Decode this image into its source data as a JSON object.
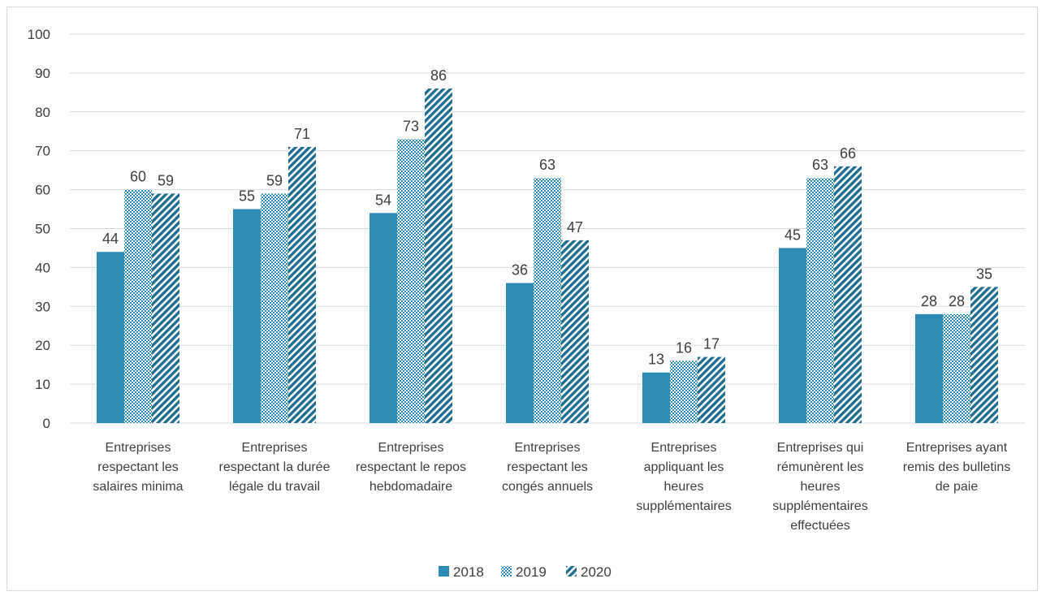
{
  "chart_data": {
    "type": "bar",
    "categories": [
      [
        "Entreprises",
        "respectant les",
        "salaires minima"
      ],
      [
        "Entreprises",
        "respectant la durée",
        "légale du travail"
      ],
      [
        "Entreprises",
        "respectant le repos",
        "hebdomadaire"
      ],
      [
        "Entreprises",
        "respectant  les",
        "congés annuels"
      ],
      [
        "Entreprises",
        "appliquant les",
        "heures",
        "supplémentaires"
      ],
      [
        "Entreprises qui",
        "rémunèrent les",
        "heures",
        "supplémentaires",
        "effectuées"
      ],
      [
        "Entreprises ayant",
        "remis des bulletins",
        "de paie"
      ]
    ],
    "series": [
      {
        "name": "2018",
        "values": [
          44,
          55,
          54,
          36,
          13,
          45,
          28
        ],
        "pattern": "solid"
      },
      {
        "name": "2019",
        "values": [
          60,
          59,
          73,
          63,
          16,
          63,
          28
        ],
        "pattern": "checker"
      },
      {
        "name": "2020",
        "values": [
          59,
          71,
          86,
          47,
          17,
          66,
          35
        ],
        "pattern": "diagonal"
      }
    ],
    "value_labels": [
      [
        "44",
        "55",
        "54",
        "36",
        "13",
        "45",
        "28"
      ],
      [
        "60",
        "59",
        "73",
        "63",
        "16",
        "63",
        "28"
      ],
      [
        "59",
        "71",
        "86",
        "47",
        "17",
        "66",
        "35"
      ]
    ],
    "ylim": [
      0,
      100
    ],
    "yticks": [
      "0",
      "10",
      "20",
      "30",
      "40",
      "50",
      "60",
      "70",
      "80",
      "90",
      "100"
    ],
    "grid": true,
    "legend_position": "bottom",
    "colors": {
      "bar": "#2e8bb3",
      "bar_dark": "#1e6e91",
      "grid": "#d9d9d9",
      "text": "#404040"
    }
  }
}
